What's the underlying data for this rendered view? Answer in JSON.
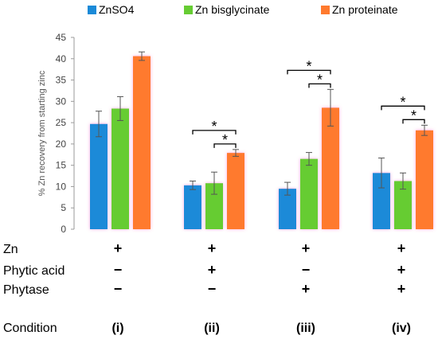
{
  "chart_data": {
    "type": "bar",
    "ylabel": "% Zn recovery from starting zinc",
    "ylim": [
      0,
      45
    ],
    "yticks": [
      0,
      5,
      10,
      15,
      20,
      25,
      30,
      35,
      40,
      45
    ],
    "grid": false,
    "legend_position": "top",
    "groups": [
      "(i)",
      "(ii)",
      "(iii)",
      "(iv)"
    ],
    "series": [
      {
        "name": "ZnSO4",
        "color": "#1a8ad8",
        "values": [
          24.7,
          10.3,
          9.5,
          13.2
        ],
        "errors": [
          3.0,
          1.0,
          1.5,
          3.5
        ]
      },
      {
        "name": "Zn bisglycinate",
        "color": "#66cc33",
        "values": [
          28.3,
          10.8,
          16.5,
          11.3
        ],
        "errors": [
          2.8,
          2.6,
          1.5,
          1.9
        ]
      },
      {
        "name": "Zn proteinate",
        "color": "#ff7a2e",
        "values": [
          40.6,
          17.9,
          28.5,
          23.2
        ],
        "errors": [
          1.0,
          0.8,
          4.3,
          1.2
        ]
      }
    ],
    "significance": [
      {
        "group": 1,
        "from": 0,
        "to": 2,
        "symbol": "*"
      },
      {
        "group": 1,
        "from": 1,
        "to": 2,
        "symbol": "*"
      },
      {
        "group": 2,
        "from": 0,
        "to": 2,
        "symbol": "*"
      },
      {
        "group": 2,
        "from": 1,
        "to": 2,
        "symbol": "*"
      },
      {
        "group": 3,
        "from": 0,
        "to": 2,
        "symbol": "*"
      },
      {
        "group": 3,
        "from": 1,
        "to": 2,
        "symbol": "*"
      }
    ],
    "conditions_table": {
      "rows": [
        {
          "label": "Zn",
          "values": [
            "+",
            "+",
            "+",
            "+"
          ]
        },
        {
          "label": "Phytic acid",
          "values": [
            "−",
            "+",
            "−",
            "+"
          ]
        },
        {
          "label": "Phytase",
          "values": [
            "−",
            "−",
            "+",
            "+"
          ]
        }
      ],
      "condition_label": "Condition"
    }
  }
}
